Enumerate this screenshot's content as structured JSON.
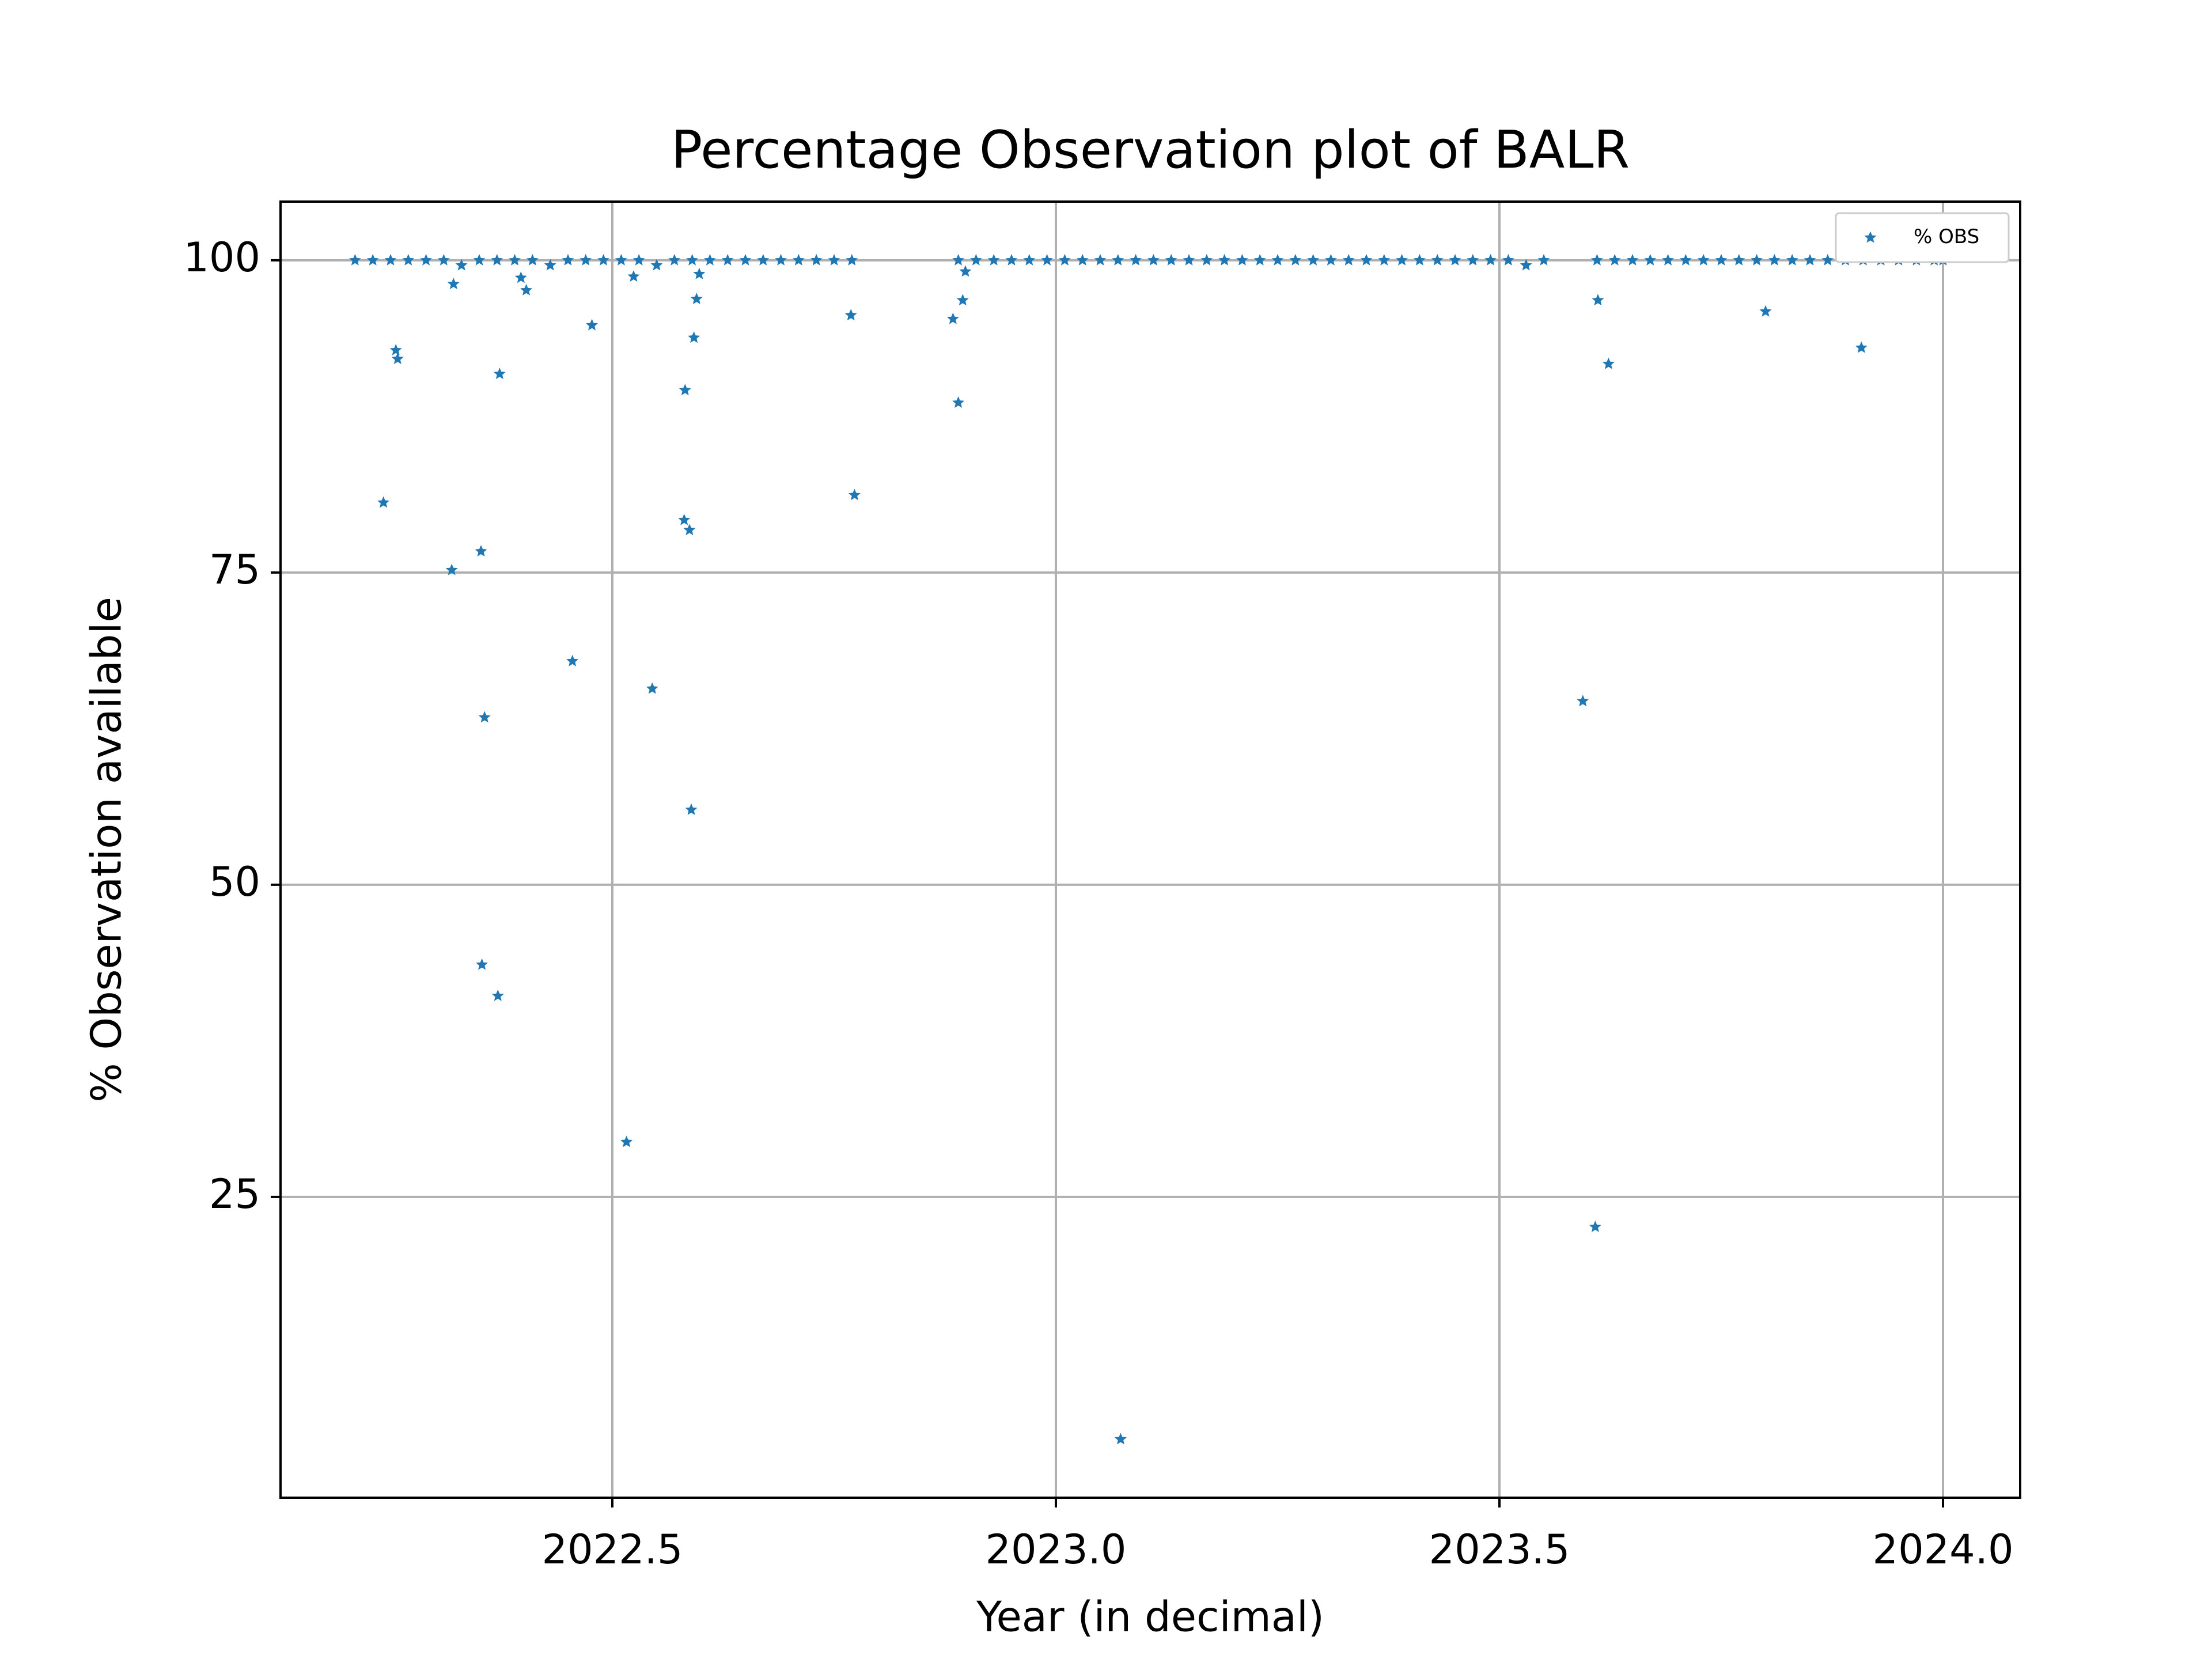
{
  "chart_data": {
    "type": "scatter",
    "title": "Percentage Observation plot of BALR",
    "x_label": "Year (in decimal)",
    "y_label": "% Observation available",
    "x": [
      2022.21,
      2022.23,
      2022.25,
      2022.27,
      2022.29,
      2022.31,
      2022.33,
      2022.35,
      2022.37,
      2022.39,
      2022.41,
      2022.43,
      2022.45,
      2022.47,
      2022.49,
      2022.51,
      2022.53,
      2022.55,
      2022.57,
      2022.59,
      2022.61,
      2022.63,
      2022.65,
      2022.67,
      2022.69,
      2022.71,
      2022.73,
      2022.75,
      2022.77,
      2022.89,
      2022.91,
      2022.93,
      2022.95,
      2022.97,
      2022.99,
      2023.01,
      2023.03,
      2023.05,
      2023.07,
      2023.09,
      2023.11,
      2023.13,
      2023.15,
      2023.17,
      2023.19,
      2023.21,
      2023.23,
      2023.25,
      2023.27,
      2023.29,
      2023.31,
      2023.33,
      2023.35,
      2023.37,
      2023.39,
      2023.41,
      2023.43,
      2023.45,
      2023.47,
      2023.49,
      2023.51,
      2023.53,
      2023.55,
      2023.61,
      2023.63,
      2023.65,
      2023.67,
      2023.69,
      2023.71,
      2023.73,
      2023.75,
      2023.77,
      2023.79,
      2023.81,
      2023.83,
      2023.85,
      2023.87,
      2023.89,
      2023.91,
      2023.93,
      2023.95,
      2023.97,
      2023.99,
      2024.0,
      2022.242,
      2022.256,
      2022.258,
      2022.319,
      2022.321,
      2022.352,
      2022.353,
      2022.356,
      2022.371,
      2022.373,
      2022.397,
      2022.403,
      2022.455,
      2022.477,
      2022.516,
      2022.524,
      2022.545,
      2022.581,
      2022.582,
      2022.587,
      2022.589,
      2022.592,
      2022.595,
      2022.598,
      2022.769,
      2022.773,
      2022.884,
      2022.89,
      2022.895,
      2022.898,
      2023.073,
      2023.594,
      2023.608,
      2023.611,
      2023.623,
      2023.8,
      2023.908
    ],
    "series": [
      {
        "name": "% OBS",
        "color": "#1f77b4",
        "values": [
          100,
          100,
          100,
          100,
          100,
          100,
          99.6,
          100,
          100,
          100,
          100,
          99.6,
          100,
          100,
          100,
          100,
          100,
          99.6,
          100,
          100,
          100,
          100,
          100,
          100,
          100,
          100,
          100,
          100,
          100,
          100,
          100,
          100,
          100,
          100,
          100,
          100,
          100,
          100,
          100,
          100,
          100,
          100,
          100,
          100,
          100,
          100,
          100,
          100,
          100,
          100,
          100,
          100,
          100,
          100,
          100,
          100,
          100,
          100,
          100,
          100,
          100,
          99.6,
          100,
          100,
          100,
          100,
          100,
          100,
          100,
          100,
          100,
          100,
          100,
          100,
          100,
          100,
          100,
          100,
          100,
          100,
          100,
          100,
          100,
          100,
          80.6,
          92.8,
          92.1,
          75.2,
          98.1,
          76.7,
          43.6,
          63.4,
          41.1,
          90.9,
          98.6,
          97.6,
          67.9,
          94.8,
          29.4,
          98.7,
          65.7,
          79.2,
          89.6,
          78.4,
          56.0,
          93.8,
          96.9,
          98.9,
          95.6,
          81.2,
          95.3,
          88.6,
          96.8,
          99.1,
          5.6,
          64.7,
          22.6,
          96.8,
          91.7,
          95.9,
          93.0
        ]
      }
    ],
    "xlim": [
      2022.126,
      2024.087
    ],
    "ylim": [
      0.92,
      104.7
    ],
    "xticks": [
      2022.5,
      {
        "value": 2023,
        "label": "2023.0"
      },
      2023.5,
      {
        "value": 2024,
        "label": "2024.0"
      }
    ],
    "yticks": [
      25,
      50,
      75,
      100
    ],
    "grid": true,
    "legend": "upper right"
  }
}
